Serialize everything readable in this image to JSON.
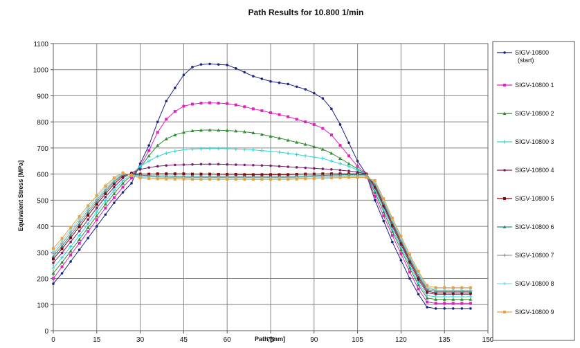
{
  "chart_data": {
    "type": "line",
    "title": "Path Results for 10.800 1/min",
    "xlabel": "Path [mm]",
    "ylabel": "Equivalent Stress [MPa]",
    "xlim": [
      0,
      150
    ],
    "ylim": [
      0,
      1100
    ],
    "xticks": [
      "0",
      "15",
      "30",
      "45",
      "60",
      "75",
      "90",
      "105",
      "120",
      "135",
      "150"
    ],
    "yticks": [
      "0",
      "100",
      "200",
      "300",
      "400",
      "500",
      "600",
      "700",
      "800",
      "900",
      "1000",
      "1100"
    ],
    "grid": true,
    "legend_position": "right",
    "x": [
      0,
      3,
      6,
      9,
      12,
      15,
      18,
      21,
      24,
      27,
      30,
      33,
      36,
      39,
      42,
      45,
      48,
      51,
      54,
      57,
      60,
      63,
      66,
      69,
      72,
      75,
      78,
      81,
      84,
      87,
      90,
      93,
      96,
      99,
      102,
      105,
      108,
      111,
      114,
      117,
      120,
      123,
      126,
      129,
      132,
      135,
      138,
      141,
      144
    ],
    "series": [
      {
        "name": "SIGV-10800 (start)",
        "color": "#1a237e",
        "values": [
          180,
          220,
          265,
          310,
          355,
          400,
          445,
          490,
          530,
          565,
          640,
          710,
          800,
          880,
          930,
          980,
          1010,
          1020,
          1022,
          1020,
          1018,
          1005,
          990,
          975,
          965,
          955,
          950,
          945,
          935,
          925,
          910,
          890,
          850,
          790,
          720,
          650,
          600,
          500,
          420,
          340,
          270,
          200,
          140,
          90,
          85,
          85,
          85,
          85,
          85
        ]
      },
      {
        "name": "SIGV-10800 1",
        "color": "#e020c0",
        "values": [
          200,
          245,
          290,
          335,
          380,
          425,
          470,
          510,
          550,
          585,
          630,
          690,
          760,
          810,
          840,
          860,
          868,
          872,
          873,
          872,
          870,
          865,
          858,
          850,
          843,
          835,
          828,
          820,
          810,
          800,
          790,
          775,
          750,
          710,
          670,
          630,
          600,
          515,
          440,
          365,
          295,
          225,
          160,
          110,
          105,
          105,
          105,
          105,
          105
        ]
      },
      {
        "name": "SIGV-10800 2",
        "color": "#2e8b2e",
        "values": [
          220,
          262,
          305,
          350,
          395,
          440,
          485,
          525,
          565,
          595,
          625,
          670,
          710,
          735,
          750,
          760,
          766,
          768,
          769,
          768,
          767,
          765,
          762,
          758,
          752,
          745,
          738,
          730,
          722,
          714,
          705,
          695,
          680,
          660,
          640,
          620,
          600,
          530,
          455,
          380,
          310,
          240,
          175,
          125,
          120,
          120,
          120,
          120,
          120
        ]
      },
      {
        "name": "SIGV-10800 3",
        "color": "#33d6d6",
        "values": [
          240,
          280,
          322,
          365,
          410,
          455,
          498,
          538,
          575,
          600,
          630,
          650,
          668,
          680,
          688,
          693,
          696,
          697,
          698,
          698,
          697,
          696,
          695,
          693,
          690,
          687,
          684,
          680,
          675,
          670,
          665,
          660,
          650,
          640,
          630,
          615,
          600,
          540,
          465,
          390,
          320,
          250,
          185,
          135,
          130,
          130,
          130,
          130,
          130
        ]
      },
      {
        "name": "SIGV-10800 4",
        "color": "#7a1f6a",
        "values": [
          260,
          298,
          340,
          382,
          426,
          470,
          512,
          550,
          585,
          605,
          618,
          625,
          630,
          633,
          635,
          636,
          637,
          638,
          638,
          638,
          637,
          636,
          635,
          634,
          633,
          632,
          630,
          628,
          626,
          624,
          622,
          620,
          618,
          615,
          612,
          608,
          600,
          548,
          475,
          400,
          330,
          260,
          195,
          145,
          140,
          140,
          140,
          140,
          140
        ]
      },
      {
        "name": "SIGV-10800 5",
        "color": "#8b0000",
        "values": [
          275,
          314,
          356,
          398,
          442,
          485,
          525,
          562,
          593,
          602,
          600,
          600,
          601,
          601,
          601,
          601,
          600,
          600,
          600,
          599,
          599,
          599,
          598,
          598,
          598,
          598,
          598,
          598,
          599,
          600,
          600,
          601,
          601,
          601,
          601,
          601,
          600,
          555,
          482,
          408,
          338,
          268,
          203,
          152,
          145,
          145,
          145,
          145,
          145
        ]
      },
      {
        "name": "SIGV-10800 6",
        "color": "#2a8a8a",
        "values": [
          285,
          324,
          366,
          408,
          452,
          494,
          534,
          570,
          598,
          600,
          596,
          594,
          593,
          593,
          592,
          592,
          592,
          591,
          591,
          591,
          591,
          591,
          591,
          591,
          591,
          591,
          591,
          591,
          592,
          593,
          594,
          595,
          596,
          597,
          598,
          598,
          597,
          560,
          488,
          414,
          344,
          274,
          210,
          158,
          150,
          150,
          150,
          150,
          150
        ]
      },
      {
        "name": "SIGV-10800 7",
        "color": "#9a9a9a",
        "values": [
          295,
          334,
          376,
          418,
          461,
          502,
          541,
          575,
          600,
          598,
          592,
          590,
          589,
          588,
          588,
          588,
          587,
          587,
          587,
          587,
          587,
          587,
          587,
          587,
          587,
          587,
          587,
          587,
          588,
          589,
          590,
          591,
          592,
          593,
          594,
          594,
          594,
          565,
          494,
          420,
          350,
          280,
          216,
          163,
          155,
          155,
          155,
          155,
          155
        ]
      },
      {
        "name": "SIGV-10800 8",
        "color": "#80e0f0",
        "values": [
          305,
          344,
          386,
          428,
          470,
          510,
          548,
          581,
          603,
          596,
          588,
          586,
          585,
          584,
          584,
          584,
          584,
          583,
          583,
          583,
          583,
          583,
          583,
          583,
          583,
          583,
          583,
          583,
          584,
          585,
          586,
          587,
          588,
          589,
          590,
          590,
          590,
          570,
          500,
          426,
          356,
          286,
          222,
          168,
          160,
          160,
          160,
          160,
          160
        ]
      },
      {
        "name": "SIGV-10800 9",
        "color": "#e6a23c",
        "values": [
          315,
          354,
          396,
          438,
          479,
          518,
          555,
          586,
          605,
          594,
          585,
          583,
          582,
          581,
          581,
          581,
          580,
          580,
          580,
          580,
          580,
          580,
          580,
          580,
          580,
          580,
          580,
          580,
          581,
          582,
          583,
          584,
          585,
          586,
          587,
          587,
          587,
          575,
          506,
          432,
          362,
          292,
          228,
          173,
          165,
          165,
          165,
          165,
          165
        ]
      }
    ]
  }
}
